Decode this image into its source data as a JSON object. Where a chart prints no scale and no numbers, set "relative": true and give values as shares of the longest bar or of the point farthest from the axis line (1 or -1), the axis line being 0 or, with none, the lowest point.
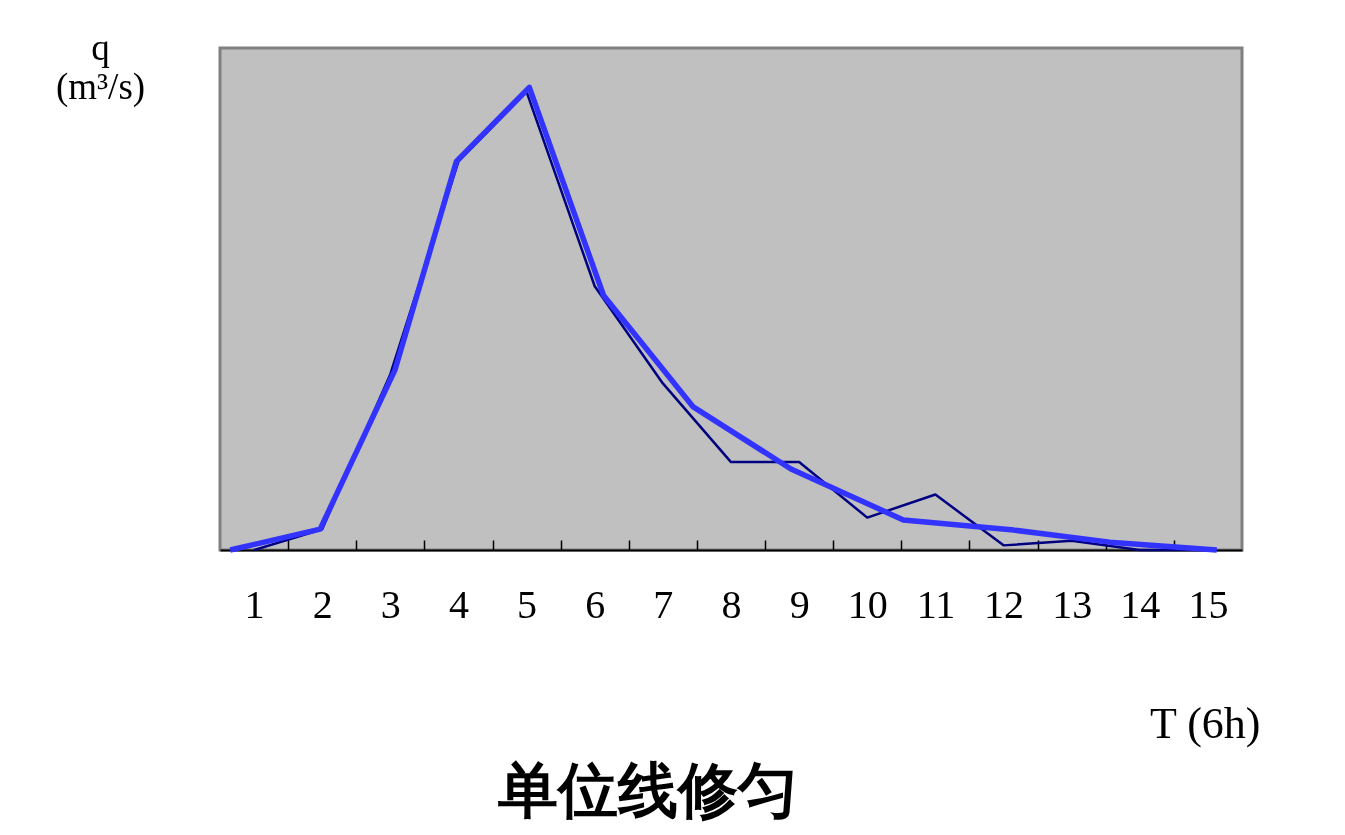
{
  "chart_data": {
    "type": "line",
    "title": "单位线修匀",
    "xlabel": "T (6h)",
    "ylabel": "q\n(m³/s)",
    "relative": true,
    "x": [
      1,
      2,
      3,
      4,
      5,
      6,
      7,
      8,
      9,
      10,
      11,
      12,
      13,
      14,
      15
    ],
    "xlim": [
      0.5,
      15.5
    ],
    "xticks": [
      1,
      {
        "value": 1.5,
        "label": null
      },
      2,
      {
        "value": 2.5,
        "label": null
      },
      3,
      {
        "value": 3.5,
        "label": null
      },
      4,
      {
        "value": 4.5,
        "label": null
      },
      5,
      {
        "value": 5.5,
        "label": null
      },
      6,
      {
        "value": 6.5,
        "label": null
      },
      7,
      {
        "value": 7.5,
        "label": null
      },
      8,
      {
        "value": 8.5,
        "label": null
      },
      9,
      {
        "value": 9.5,
        "label": null
      },
      10,
      {
        "value": 10.5,
        "label": null
      },
      11,
      {
        "value": 11.5,
        "label": null
      },
      12,
      {
        "value": 12.5,
        "label": null
      },
      13,
      {
        "value": 13.5,
        "label": null
      },
      14,
      {
        "value": 14.5,
        "label": null
      },
      15
    ],
    "series": [
      {
        "color": "#000080",
        "values": [
          0,
          0.045,
          0.38,
          0.84,
          0.99,
          0.57,
          0.36,
          0.19,
          0.19,
          0.07,
          0.12,
          0.01,
          0.02,
          0,
          0
        ]
      },
      {
        "color": "#3333ff",
        "x": [
          0.65,
          1.97,
          3.07,
          3.97,
          5.04,
          6.13,
          7.44,
          8.88,
          10.53,
          12.15,
          13.56,
          15.13
        ],
        "values": [
          0,
          0.045,
          0.39,
          0.84,
          1,
          0.55,
          0.31,
          0.175,
          0.065,
          0.043,
          0.017,
          0
        ]
      }
    ]
  }
}
